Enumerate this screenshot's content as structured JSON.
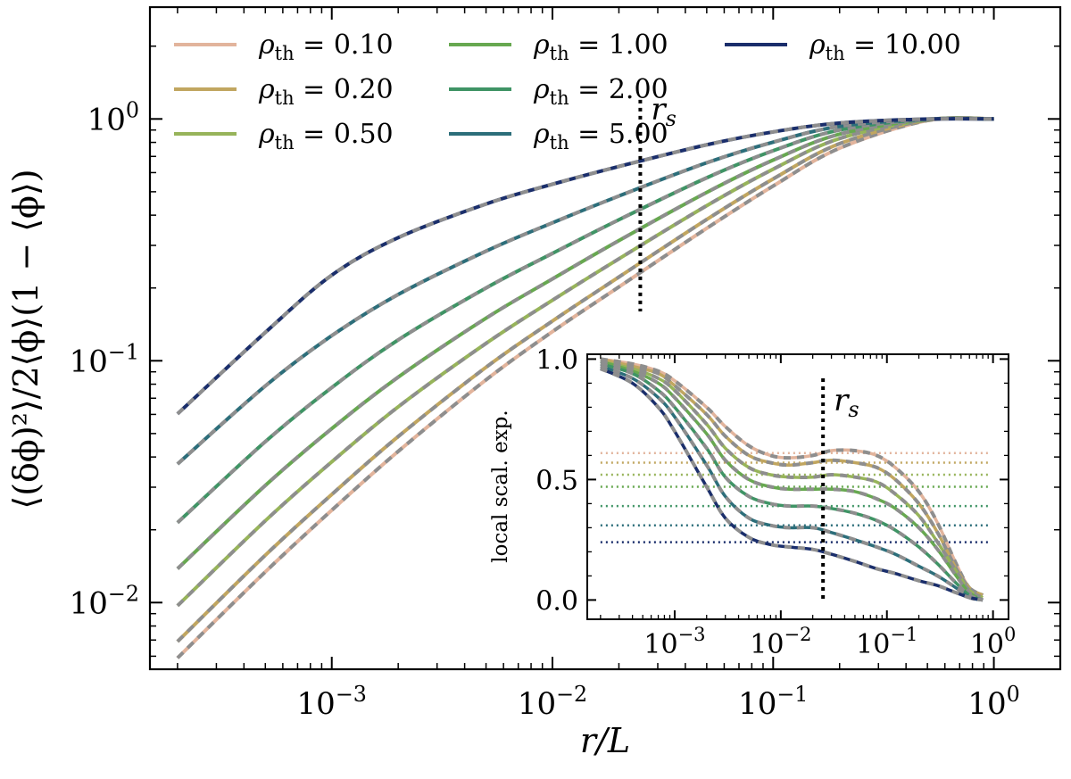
{
  "chart_data": [
    {
      "type": "line",
      "xlabel": "r/L",
      "ylabel": "⟨(δϕ)²⟩/2⟨ϕ⟩(1 − ⟨ϕ⟩)",
      "x_scale": "log",
      "y_scale": "log",
      "xlim": [
        0.00015,
        2.0
      ],
      "ylim": [
        0.0053,
        2.9
      ],
      "x_ticks": [
        {
          "value": 0.001,
          "base": "10",
          "exp": "−3"
        },
        {
          "value": 0.01,
          "base": "10",
          "exp": "−2"
        },
        {
          "value": 0.1,
          "base": "10",
          "exp": "−1"
        },
        {
          "value": 1,
          "base": "10",
          "exp": "0"
        }
      ],
      "y_ticks": [
        {
          "value": 0.01,
          "base": "10",
          "exp": "−2"
        },
        {
          "value": 0.1,
          "base": "10",
          "exp": "−1"
        },
        {
          "value": 1,
          "base": "10",
          "exp": "0"
        }
      ],
      "legend": {
        "position": "top",
        "columns": 3,
        "symbol": "ρ",
        "subscript": "th"
      },
      "annotations": [
        {
          "text": "r",
          "subscript": "s",
          "x": 0.025,
          "y_range": [
            0.16,
            1.2
          ],
          "style": "dotted"
        }
      ],
      "x": [
        0.0002,
        0.0005,
        0.001,
        0.002,
        0.005,
        0.01,
        0.02,
        0.05,
        0.1,
        0.2,
        0.5,
        1.0
      ],
      "series": [
        {
          "name": "ρ_th = 0.10",
          "color": "#e2b49c",
          "values": [
            0.0059,
            0.0134,
            0.0241,
            0.0422,
            0.0834,
            0.132,
            0.202,
            0.353,
            0.528,
            0.757,
            0.985,
            1.0
          ]
        },
        {
          "name": "ρ_th = 0.20",
          "color": "#c1a660",
          "values": [
            0.0069,
            0.0157,
            0.028,
            0.0486,
            0.094,
            0.146,
            0.222,
            0.384,
            0.565,
            0.79,
            0.99,
            1.0
          ]
        },
        {
          "name": "ρ_th = 0.50",
          "color": "#97b45a",
          "values": [
            0.0097,
            0.0218,
            0.0382,
            0.0645,
            0.118,
            0.178,
            0.264,
            0.438,
            0.62,
            0.83,
            0.992,
            1.0
          ]
        },
        {
          "name": "ρ_th = 1.00",
          "color": "#67a850",
          "values": [
            0.0138,
            0.0305,
            0.0524,
            0.0856,
            0.15,
            0.218,
            0.314,
            0.497,
            0.676,
            0.865,
            0.995,
            1.0
          ]
        },
        {
          "name": "ρ_th = 2.00",
          "color": "#3f9465",
          "values": [
            0.0214,
            0.0463,
            0.0775,
            0.122,
            0.2,
            0.278,
            0.383,
            0.571,
            0.739,
            0.9,
            0.997,
            1.0
          ]
        },
        {
          "name": "ρ_th = 5.00",
          "color": "#2c6e7a",
          "values": [
            0.0374,
            0.0787,
            0.127,
            0.188,
            0.284,
            0.372,
            0.48,
            0.659,
            0.802,
            0.932,
            0.998,
            1.0
          ]
        },
        {
          "name": "ρ_th = 10.00",
          "color": "#1a2e6b",
          "values": [
            0.0603,
            0.131,
            0.226,
            0.323,
            0.445,
            0.537,
            0.636,
            0.782,
            0.884,
            0.962,
            0.999,
            1.0
          ]
        }
      ],
      "overlay_style": {
        "color": "#8e8e8e",
        "dash": "dashed"
      }
    },
    {
      "type": "line",
      "ylabel": "local scal. exp.",
      "x_scale": "log",
      "xlim": [
        0.00015,
        1.4
      ],
      "ylim": [
        -0.08,
        1.02
      ],
      "x_ticks": [
        {
          "value": 0.001,
          "base": "10",
          "exp": "−3"
        },
        {
          "value": 0.01,
          "base": "10",
          "exp": "−2"
        },
        {
          "value": 0.1,
          "base": "10",
          "exp": "−1"
        },
        {
          "value": 1,
          "base": "10",
          "exp": "0"
        }
      ],
      "y_ticks": [
        {
          "value": 0.0,
          "label": "0.0"
        },
        {
          "value": 0.5,
          "label": "0.5"
        },
        {
          "value": 1.0,
          "label": "1.0"
        }
      ],
      "annotations": [
        {
          "text": "r",
          "subscript": "s",
          "x": 0.025,
          "y_range": [
            0.0,
            0.92
          ],
          "style": "dotted"
        }
      ],
      "x": [
        0.0002,
        0.0004,
        0.0007,
        0.001,
        0.002,
        0.003,
        0.005,
        0.008,
        0.012,
        0.02,
        0.03,
        0.05,
        0.08,
        0.12,
        0.2,
        0.3,
        0.45,
        0.6,
        0.8
      ],
      "series": [
        {
          "name": "ρ_th = 0.10",
          "color": "#e2b49c",
          "plateau": 0.61,
          "values": [
            1.0,
            0.98,
            0.95,
            0.91,
            0.8,
            0.72,
            0.64,
            0.6,
            0.59,
            0.6,
            0.62,
            0.62,
            0.6,
            0.55,
            0.45,
            0.32,
            0.15,
            0.05,
            0.02
          ]
        },
        {
          "name": "ρ_th = 0.20",
          "color": "#c1a660",
          "plateau": 0.57,
          "values": [
            1.0,
            0.97,
            0.94,
            0.89,
            0.77,
            0.68,
            0.6,
            0.57,
            0.56,
            0.57,
            0.58,
            0.57,
            0.55,
            0.5,
            0.4,
            0.28,
            0.13,
            0.05,
            0.02
          ]
        },
        {
          "name": "ρ_th = 0.50",
          "color": "#97b45a",
          "plateau": 0.52,
          "values": [
            0.99,
            0.96,
            0.92,
            0.87,
            0.73,
            0.63,
            0.55,
            0.52,
            0.51,
            0.51,
            0.52,
            0.51,
            0.49,
            0.44,
            0.35,
            0.24,
            0.12,
            0.04,
            0.01
          ]
        },
        {
          "name": "ρ_th = 1.00",
          "color": "#67a850",
          "plateau": 0.47,
          "values": [
            0.99,
            0.95,
            0.9,
            0.84,
            0.69,
            0.58,
            0.5,
            0.47,
            0.46,
            0.46,
            0.46,
            0.45,
            0.42,
            0.38,
            0.3,
            0.21,
            0.1,
            0.03,
            0.0
          ]
        },
        {
          "name": "ρ_th = 2.00",
          "color": "#3f9465",
          "plateau": 0.39,
          "values": [
            0.98,
            0.94,
            0.87,
            0.8,
            0.63,
            0.51,
            0.43,
            0.4,
            0.39,
            0.39,
            0.38,
            0.36,
            0.33,
            0.29,
            0.22,
            0.15,
            0.07,
            0.02,
            0.0
          ]
        },
        {
          "name": "ρ_th = 5.00",
          "color": "#2c6e7a",
          "plateau": 0.31,
          "values": [
            0.97,
            0.92,
            0.84,
            0.76,
            0.56,
            0.43,
            0.34,
            0.31,
            0.3,
            0.3,
            0.28,
            0.25,
            0.22,
            0.19,
            0.14,
            0.1,
            0.05,
            0.01,
            0.0
          ]
        },
        {
          "name": "ρ_th = 10.00",
          "color": "#1a2e6b",
          "plateau": 0.24,
          "values": [
            0.96,
            0.9,
            0.8,
            0.7,
            0.47,
            0.34,
            0.26,
            0.23,
            0.22,
            0.21,
            0.19,
            0.16,
            0.13,
            0.11,
            0.08,
            0.06,
            0.03,
            0.01,
            0.0
          ]
        }
      ],
      "overlay_style": {
        "color": "#8e8e8e",
        "dash": "dashed"
      }
    }
  ]
}
